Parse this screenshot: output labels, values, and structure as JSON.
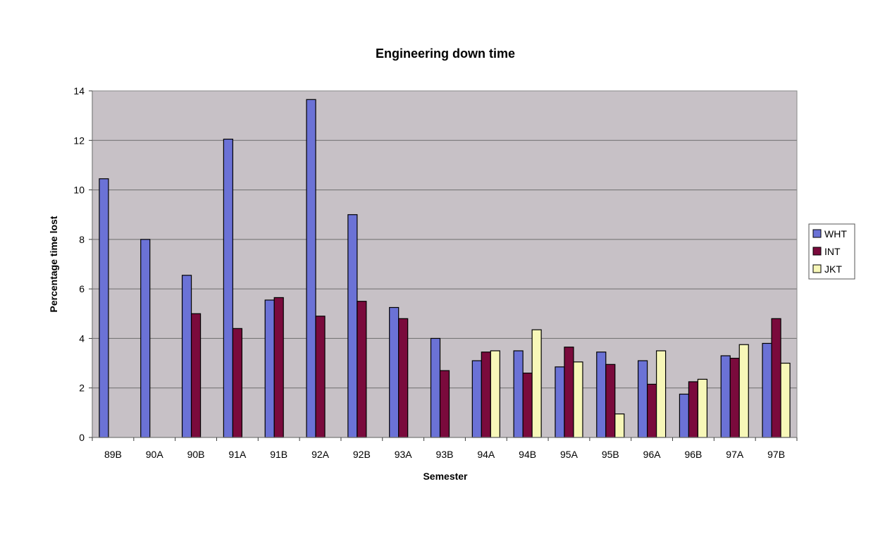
{
  "chart_data": {
    "type": "bar",
    "title": "Engineering down time",
    "xlabel": "Semester",
    "ylabel": "Percentage time lost",
    "ylim": [
      0,
      14
    ],
    "yticks": [
      0,
      2,
      4,
      6,
      8,
      10,
      12,
      14
    ],
    "grid": true,
    "legend_position": "right",
    "categories": [
      "89B",
      "90A",
      "90B",
      "91A",
      "91B",
      "92A",
      "92B",
      "93A",
      "93B",
      "94A",
      "94B",
      "95A",
      "95B",
      "96A",
      "96B",
      "97A",
      "97B"
    ],
    "series": [
      {
        "name": "WHT",
        "color": "#6b72d6",
        "values": [
          10.45,
          8.0,
          6.55,
          12.05,
          5.55,
          13.65,
          9.0,
          5.25,
          4.0,
          3.1,
          3.5,
          2.85,
          3.45,
          3.1,
          1.75,
          3.3,
          3.8
        ]
      },
      {
        "name": "INT",
        "color": "#7a0a3c",
        "values": [
          null,
          null,
          5.0,
          4.4,
          5.65,
          4.9,
          5.5,
          4.8,
          2.7,
          3.45,
          2.6,
          3.65,
          2.95,
          2.15,
          2.25,
          3.2,
          4.8
        ]
      },
      {
        "name": "JKT",
        "color": "#f7f7b8",
        "values": [
          null,
          null,
          null,
          null,
          null,
          null,
          null,
          null,
          null,
          3.5,
          4.35,
          3.05,
          0.95,
          3.5,
          2.35,
          3.75,
          3.0
        ]
      }
    ],
    "colors": {
      "plot_background": "#c7c1c6",
      "gridline": "#6e6e6e",
      "axis": "#3a3a3a",
      "bar_outline": "#000000"
    }
  }
}
